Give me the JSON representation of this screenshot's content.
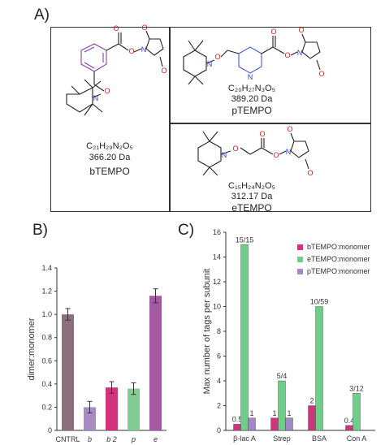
{
  "panels": {
    "a": "A)",
    "b": "B)",
    "c": "C)"
  },
  "molecules": [
    {
      "formula": "C₂₁H₂₉N₂O₅",
      "mass": "366.20 Da",
      "name": "bTEMPO"
    },
    {
      "formula": "C₂₀H₂₇N₃O₅",
      "mass": "389.20 Da",
      "name": "pTEMPO"
    },
    {
      "formula": "C₁₅H₂₄N₂O₅",
      "mass": "312.17 Da",
      "name": "eTEMPO"
    }
  ],
  "atoms": {
    "O": "O",
    "N": "N"
  },
  "chart_data": [
    {
      "panel": "B",
      "type": "bar",
      "ylabel": "dimer:monomer",
      "ylim": [
        0,
        1.4
      ],
      "yticks": [
        "0",
        "0.2",
        "0.4",
        "0.6",
        "0.8",
        "1.0",
        "1.2",
        "1.4"
      ],
      "categories": [
        "CNTRL",
        "b",
        "b 2",
        "p",
        "e"
      ],
      "values": [
        1.0,
        0.2,
        0.37,
        0.36,
        1.16
      ],
      "errors": [
        0.05,
        0.05,
        0.05,
        0.05,
        0.06
      ],
      "colors": [
        "#8c6f7d",
        "#a88bc0",
        "#d0347c",
        "#7fcc94",
        "#a35aa3"
      ]
    },
    {
      "panel": "C",
      "type": "bar",
      "ylabel": "Max number of tags per subunit",
      "ylim": [
        0,
        16
      ],
      "yticks": [
        "0",
        "2",
        "4",
        "6",
        "8",
        "10",
        "12",
        "14",
        "16"
      ],
      "categories": [
        "β-lac A",
        "Strep",
        "BSA",
        "Con A"
      ],
      "series": [
        {
          "name": "bTEMPO:monomer",
          "color": "#d0347c",
          "values": [
            0.5,
            1,
            2,
            0.4
          ],
          "labels": [
            "0.5",
            "1",
            "2",
            "0.4"
          ]
        },
        {
          "name": "eTEMPO:monomer",
          "color": "#6fcf8a",
          "values": [
            15,
            4,
            10,
            3
          ],
          "labels": [
            "15/15",
            "5/4",
            "10/59",
            "3/12"
          ]
        },
        {
          "name": "pTEMPO:monomer",
          "color": "#a487c7",
          "values": [
            1,
            1,
            0,
            0
          ],
          "labels": [
            "1",
            "1",
            "",
            ""
          ]
        }
      ],
      "legend_position": "top-right"
    }
  ]
}
